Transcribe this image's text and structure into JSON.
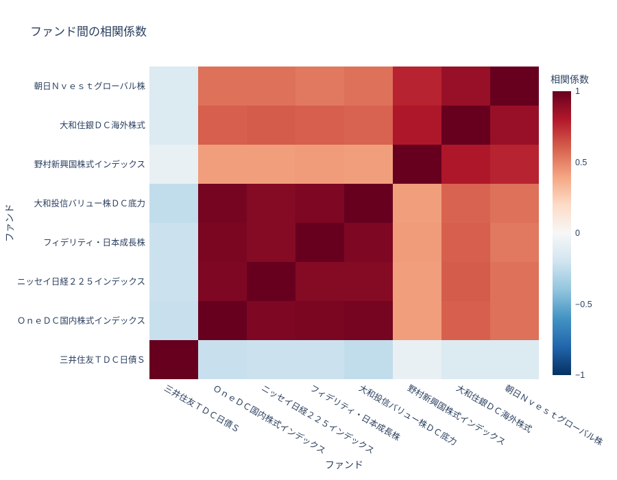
{
  "title": "ファンド間の相関係数",
  "x_axis": {
    "title": "ファンド",
    "labels": [
      "三井住友ＴＤＣ日債Ｓ",
      "ＯｎｅＤＣ国内株式インデックス",
      "ニッセイ日経２２５インデックス",
      "フィデリティ・日本成長株",
      "大和投信バリュー株ＤＣ底力",
      "野村新興国株式インデックス",
      "大和住銀ＤＣ海外株式",
      "朝日Ｎｖｅｓｔグローバル株"
    ]
  },
  "y_axis": {
    "title": "ファンド",
    "labels": [
      "朝日Ｎｖｅｓｔグローバル株",
      "大和住銀ＤＣ海外株式",
      "野村新興国株式インデックス",
      "大和投信バリュー株ＤＣ底力",
      "フィデリティ・日本成長株",
      "ニッセイ日経２２５インデックス",
      "ＯｎｅＤＣ国内株式インデックス",
      "三井住友ＴＤＣ日債Ｓ"
    ]
  },
  "colorbar": {
    "title": "相関係数",
    "tick_labels": [
      "1",
      "0.5",
      "0",
      "−0.5",
      "−1"
    ],
    "tick_values": [
      1,
      0.5,
      0,
      -0.5,
      -1
    ]
  },
  "colors": {
    "text": "#2a3f5f",
    "background": "#ffffff"
  },
  "chart_data": {
    "type": "heatmap",
    "title": "ファンド間の相関係数",
    "xlabel": "ファンド",
    "ylabel": "ファンド",
    "x": [
      "三井住友ＴＤＣ日債Ｓ",
      "ＯｎｅＤＣ国内株式インデックス",
      "ニッセイ日経２２５インデックス",
      "フィデリティ・日本成長株",
      "大和投信バリュー株ＤＣ底力",
      "野村新興国株式インデックス",
      "大和住銀ＤＣ海外株式",
      "朝日Ｎｖｅｓｔグローバル株"
    ],
    "y": [
      "朝日Ｎｖｅｓｔグローバル株",
      "大和住銀ＤＣ海外株式",
      "野村新興国株式インデックス",
      "大和投信バリュー株ＤＣ底力",
      "フィデリティ・日本成長株",
      "ニッセイ日経２２５インデックス",
      "ＯｎｅＤＣ国内株式インデックス",
      "三井住友ＴＤＣ日債Ｓ"
    ],
    "z": [
      [
        -0.14,
        0.55,
        0.55,
        0.53,
        0.55,
        0.77,
        0.87,
        1.0
      ],
      [
        -0.14,
        0.6,
        0.61,
        0.6,
        0.59,
        0.81,
        1.0,
        0.87
      ],
      [
        -0.08,
        0.42,
        0.42,
        0.43,
        0.42,
        1.0,
        0.81,
        0.77
      ],
      [
        -0.25,
        0.96,
        0.92,
        0.94,
        1.0,
        0.42,
        0.59,
        0.55
      ],
      [
        -0.22,
        0.95,
        0.92,
        1.0,
        0.94,
        0.43,
        0.6,
        0.53
      ],
      [
        -0.22,
        0.94,
        1.0,
        0.92,
        0.92,
        0.42,
        0.61,
        0.55
      ],
      [
        -0.23,
        1.0,
        0.94,
        0.95,
        0.96,
        0.42,
        0.6,
        0.55
      ],
      [
        1.0,
        -0.23,
        -0.22,
        -0.22,
        -0.25,
        -0.08,
        -0.14,
        -0.14
      ]
    ],
    "zmin": -1,
    "zmax": 1,
    "colorscale_name": "RdBu reversed",
    "colorscale_stops": [
      [
        0.0,
        "#053061"
      ],
      [
        0.1,
        "#2166ac"
      ],
      [
        0.2,
        "#4393c3"
      ],
      [
        0.3,
        "#92c5de"
      ],
      [
        0.4,
        "#d1e5f0"
      ],
      [
        0.5,
        "#f7f7f7"
      ],
      [
        0.6,
        "#fddbc7"
      ],
      [
        0.7,
        "#f4a582"
      ],
      [
        0.8,
        "#d6604d"
      ],
      [
        0.9,
        "#b2182b"
      ],
      [
        1.0,
        "#67001f"
      ]
    ],
    "legend_position": "right-colorbar",
    "grid": false
  }
}
